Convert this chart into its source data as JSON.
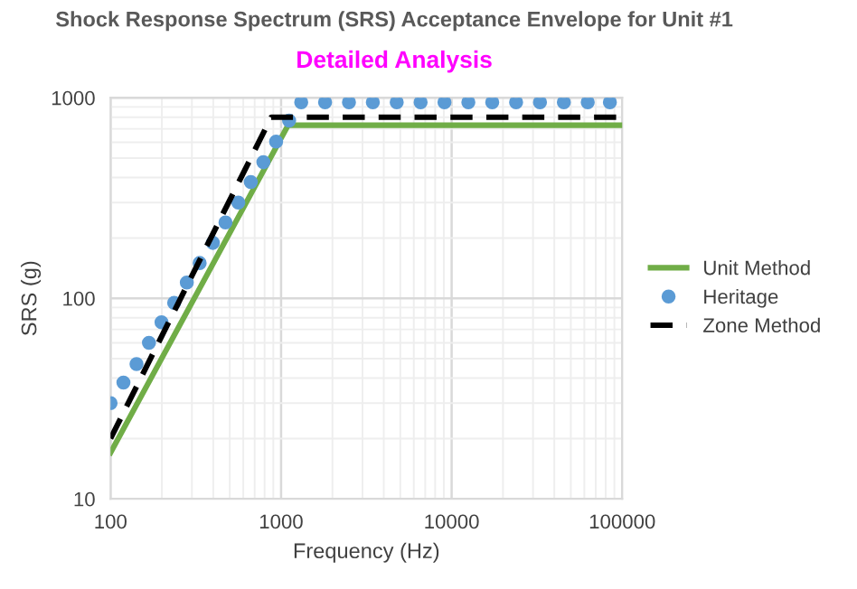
{
  "chart_data": {
    "type": "line",
    "title": "Shock Response Spectrum (SRS) Acceptance Envelope for Unit #1",
    "subtitle": "Detailed Analysis",
    "xlabel": "Frequency (Hz)",
    "ylabel": "SRS (g)",
    "log": "xy",
    "grid": true,
    "legend": "right",
    "xlim": [
      100,
      100000
    ],
    "ylim": [
      10,
      1000
    ],
    "xticks": [
      100,
      1000,
      10000,
      100000
    ],
    "yticks": [
      10,
      100,
      1000
    ],
    "series": [
      {
        "name": "Unit Method",
        "color": "#70ad47",
        "line_style": "solid",
        "x": [
          100,
          1100,
          100000
        ],
        "values": [
          17,
          730,
          730
        ]
      },
      {
        "name": "Heritage",
        "color": "#5b9bd5",
        "type": "scatter",
        "marker": "circle",
        "x": [
          100,
          119,
          142,
          168,
          199,
          236,
          280,
          333,
          398,
          472,
          561,
          664,
          787,
          935,
          1114,
          1312,
          1811,
          2500,
          3451,
          4764,
          6577,
          9078,
          12531,
          17298,
          23878,
          32961,
          45499,
          62806,
          84700
        ],
        "values": [
          30,
          38,
          47,
          60,
          76,
          95,
          120,
          150,
          189,
          239,
          300,
          380,
          477,
          604,
          769,
          950,
          950,
          950,
          950,
          950,
          950,
          950,
          950,
          950,
          950,
          950,
          950,
          950,
          950
        ]
      },
      {
        "name": "Zone Method",
        "color": "#000000",
        "line_style": "dashed",
        "x": [
          100,
          875,
          100000
        ],
        "values": [
          20,
          800,
          800
        ]
      }
    ]
  }
}
